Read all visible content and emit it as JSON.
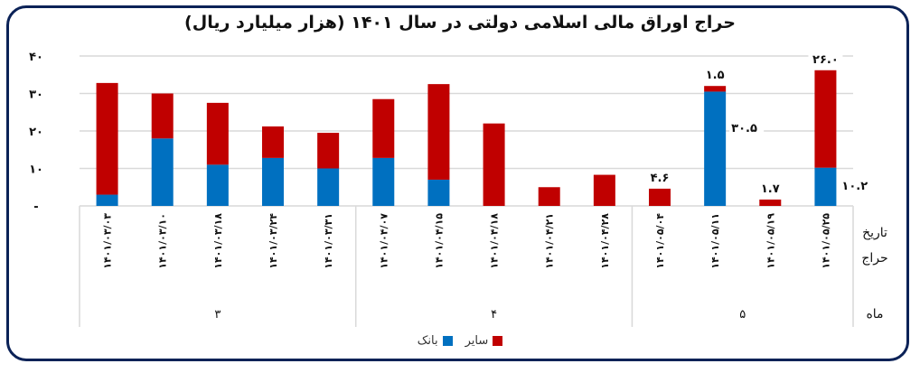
{
  "chart_data": {
    "type": "bar",
    "stacked": true,
    "title": "حراج اوراق مالی اسلامی دولتی در  سال ۱۴۰۱ (هزار میلیارد ریال)",
    "xlabel": "تاریخ حراج",
    "month_label": "ماه",
    "ylabel": "",
    "ylim": [
      0,
      40
    ],
    "yticks": [
      "-",
      "۱۰",
      "۲۰",
      "۳۰",
      "۴۰"
    ],
    "ytick_values": [
      0,
      10,
      20,
      30,
      40
    ],
    "grid": true,
    "legend_position": "bottom",
    "categories": [
      "۱۴۰۱/۰۳/۰۳",
      "۱۴۰۱/۰۳/۱۰",
      "۱۴۰۱/۰۳/۱۸",
      "۱۴۰۱/۰۳/۲۴",
      "۱۴۰۱/۰۳/۳۱",
      "۱۴۰۱/۰۴/۰۷",
      "۱۴۰۱/۰۴/۱۵",
      "۱۴۰۱/۰۴/۱۸",
      "۱۴۰۱/۰۴/۲۱",
      "۱۴۰۱/۰۴/۲۸",
      "۱۴۰۱/۰۵/۰۴",
      "۱۴۰۱/۰۵/۱۱",
      "۱۴۰۱/۰۵/۱۹",
      "۱۴۰۱/۰۵/۲۵"
    ],
    "month_groups": [
      {
        "label": "۳",
        "count": 5
      },
      {
        "label": "۴",
        "count": 5
      },
      {
        "label": "۵",
        "count": 4
      }
    ],
    "series": [
      {
        "name": "بانک",
        "color": "#0070c0",
        "values": [
          3.0,
          18.0,
          11.0,
          12.8,
          10.0,
          12.8,
          7.0,
          0,
          0,
          0,
          0,
          30.5,
          0,
          10.2
        ]
      },
      {
        "name": "سایر",
        "color": "#c00000",
        "values": [
          29.8,
          12.0,
          16.5,
          8.4,
          9.5,
          15.7,
          25.5,
          22.0,
          5.0,
          8.3,
          4.6,
          1.5,
          1.7,
          26.0
        ]
      }
    ],
    "annotations": [
      {
        "index": 10,
        "series": "سایر",
        "text": "۴.۶"
      },
      {
        "index": 11,
        "series": "سایر",
        "text": "۱.۵"
      },
      {
        "index": 11,
        "series": "بانک",
        "text": "۳۰.۵"
      },
      {
        "index": 12,
        "series": "سایر",
        "text": "۱.۷"
      },
      {
        "index": 13,
        "series": "سایر",
        "text": "۲۶.۰"
      },
      {
        "index": 13,
        "series": "بانک",
        "text": "۱۰.۲"
      }
    ]
  },
  "legend": {
    "other_label": "سایر",
    "bank_label": "بانک"
  }
}
